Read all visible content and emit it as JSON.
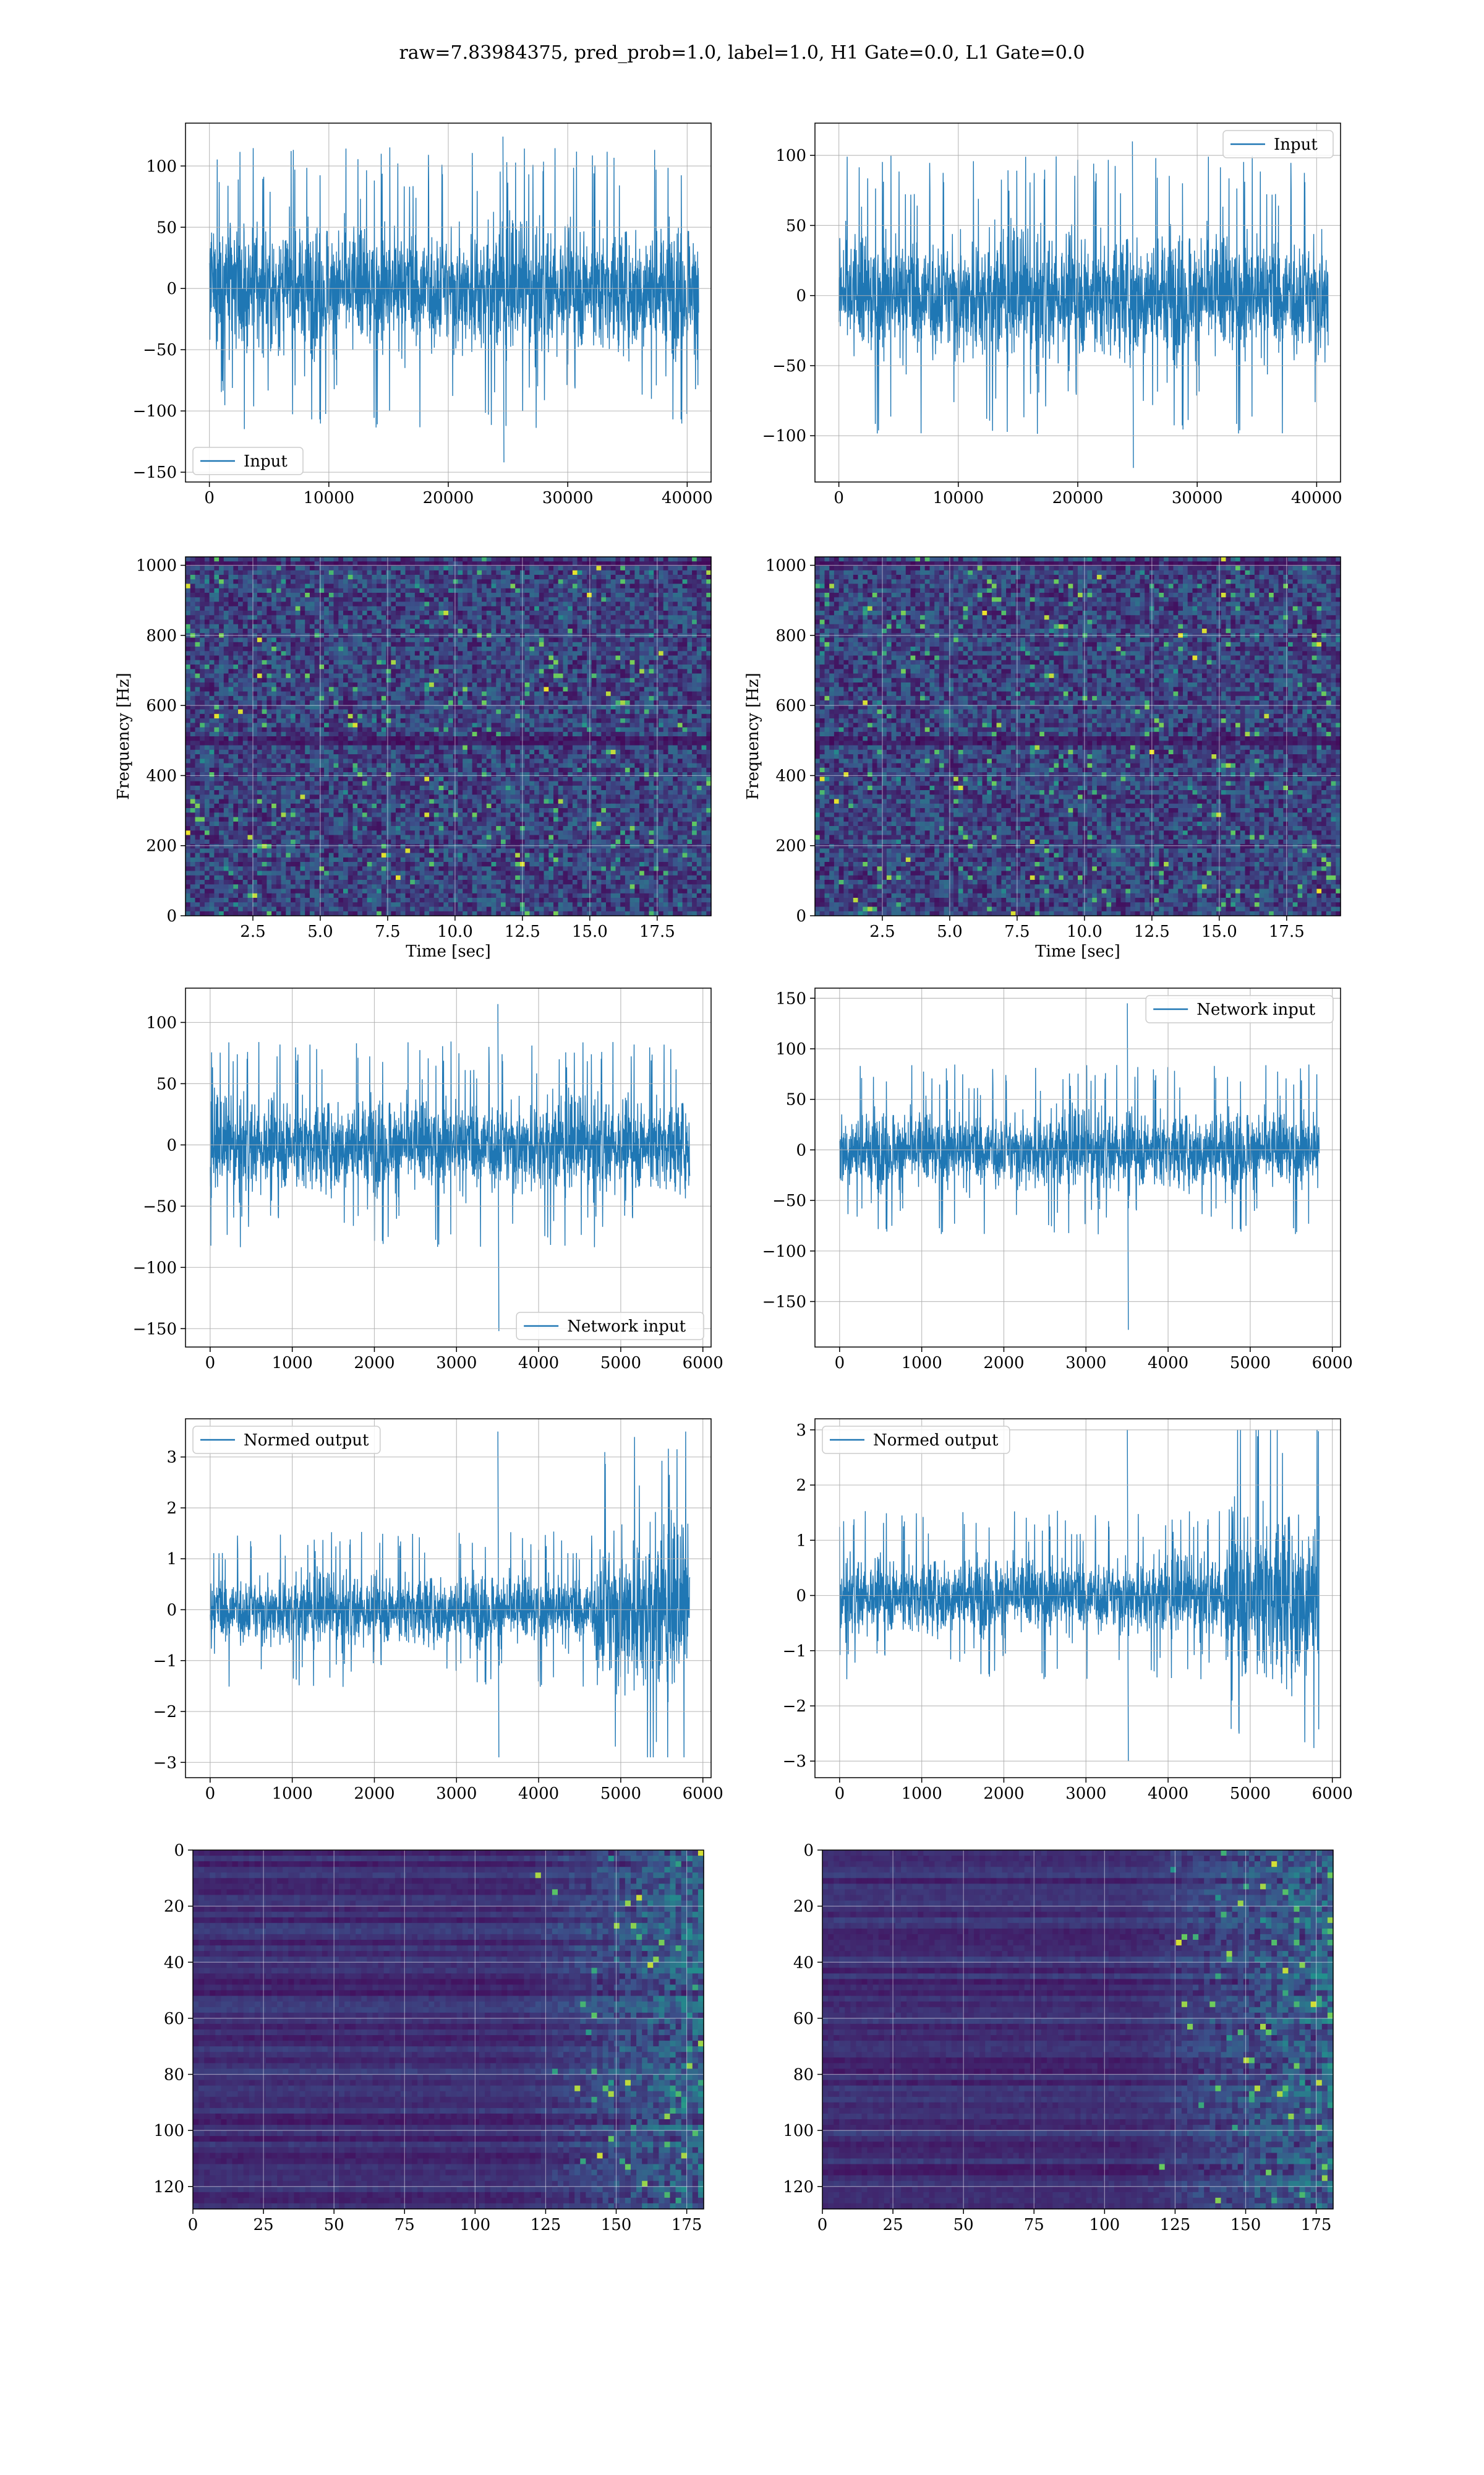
{
  "figure": {
    "suptitle": "raw=7.83984375, pred_prob=1.0, label=1.0, H1 Gate=0.0, L1 Gate=0.0",
    "line_color": "#1f77b4",
    "grid_color": "#b0b0b0"
  },
  "chart_data": [
    {
      "id": "input-left",
      "type": "line",
      "series": [
        {
          "name": "Input",
          "length": 40960,
          "baseline": 0,
          "amplitude_typical": 75,
          "min": -142,
          "max": 124
        }
      ],
      "x_ticks": [
        0,
        10000,
        20000,
        30000,
        40000
      ],
      "y_ticks": [
        -150,
        -100,
        -50,
        0,
        50,
        100
      ],
      "xlim": [
        -2000,
        42000
      ],
      "ylim": [
        -158,
        135
      ],
      "legend": "lower-left",
      "grid": true
    },
    {
      "id": "input-right",
      "type": "line",
      "series": [
        {
          "name": "Input",
          "length": 40960,
          "baseline": 0,
          "amplitude_typical": 65,
          "min": -123,
          "max": 110
        }
      ],
      "x_ticks": [
        0,
        10000,
        20000,
        30000,
        40000
      ],
      "y_ticks": [
        -100,
        -50,
        0,
        50,
        100
      ],
      "xlim": [
        -2000,
        42000
      ],
      "ylim": [
        -133,
        123
      ],
      "legend": "top-right",
      "grid": true
    },
    {
      "id": "spectrogram-left",
      "type": "heatmap",
      "xlabel": "Time [sec]",
      "ylabel": "Frequency [Hz]",
      "x_ticks": [
        "2.5",
        "5.0",
        "7.5",
        "10.0",
        "12.5",
        "15.0",
        "17.5"
      ],
      "x_tick_values": [
        2.5,
        5.0,
        7.5,
        10.0,
        12.5,
        15.0,
        17.5
      ],
      "y_ticks": [
        0,
        200,
        400,
        600,
        800,
        1000
      ],
      "xlim": [
        0,
        19.5
      ],
      "ylim": [
        0,
        1024
      ],
      "colormap": "viridis",
      "grid": true
    },
    {
      "id": "spectrogram-right",
      "type": "heatmap",
      "xlabel": "Time [sec]",
      "ylabel": "Frequency [Hz]",
      "x_ticks": [
        "2.5",
        "5.0",
        "7.5",
        "10.0",
        "12.5",
        "15.0",
        "17.5"
      ],
      "x_tick_values": [
        2.5,
        5.0,
        7.5,
        10.0,
        12.5,
        15.0,
        17.5
      ],
      "y_ticks": [
        0,
        200,
        400,
        600,
        800,
        1000
      ],
      "xlim": [
        0,
        19.5
      ],
      "ylim": [
        0,
        1024
      ],
      "colormap": "viridis",
      "grid": true
    },
    {
      "id": "network-input-left",
      "type": "line",
      "series": [
        {
          "name": "Network input",
          "length": 5840,
          "baseline": 0,
          "amplitude_typical": 55,
          "min": -152,
          "max": 115
        }
      ],
      "x_ticks": [
        0,
        1000,
        2000,
        3000,
        4000,
        5000,
        6000
      ],
      "y_ticks": [
        -150,
        -100,
        -50,
        0,
        50,
        100
      ],
      "xlim": [
        -300,
        6100
      ],
      "ylim": [
        -165,
        128
      ],
      "legend": "lower-right",
      "grid": true
    },
    {
      "id": "network-input-right",
      "type": "line",
      "series": [
        {
          "name": "Network input",
          "length": 5840,
          "baseline": 0,
          "amplitude_typical": 55,
          "min": -178,
          "max": 145
        }
      ],
      "x_ticks": [
        0,
        1000,
        2000,
        3000,
        4000,
        5000,
        6000
      ],
      "y_ticks": [
        -150,
        -100,
        -50,
        0,
        50,
        100,
        150
      ],
      "xlim": [
        -300,
        6100
      ],
      "ylim": [
        -195,
        160
      ],
      "legend": "top-right",
      "grid": true
    },
    {
      "id": "normed-output-left",
      "type": "line",
      "series": [
        {
          "name": "Normed output",
          "length": 5840,
          "baseline": 0,
          "amplitude_typical": 1.0,
          "burst_start": 4700,
          "burst_amplitude": 2.3,
          "min": -2.9,
          "max": 3.5
        }
      ],
      "x_ticks": [
        0,
        1000,
        2000,
        3000,
        4000,
        5000,
        6000
      ],
      "y_ticks": [
        -3,
        -2,
        -1,
        0,
        1,
        2,
        3
      ],
      "xlim": [
        -300,
        6100
      ],
      "ylim": [
        -3.3,
        3.75
      ],
      "legend": "top-left",
      "grid": true
    },
    {
      "id": "normed-output-right",
      "type": "line",
      "series": [
        {
          "name": "Normed output",
          "length": 5840,
          "baseline": 0,
          "amplitude_typical": 1.0,
          "burst_start": 4700,
          "burst_amplitude": 2.3,
          "min": -3.0,
          "max": 3.0
        }
      ],
      "x_ticks": [
        0,
        1000,
        2000,
        3000,
        4000,
        5000,
        6000
      ],
      "y_ticks": [
        -3,
        -2,
        -1,
        0,
        1,
        2,
        3
      ],
      "xlim": [
        -300,
        6100
      ],
      "ylim": [
        -3.3,
        3.2
      ],
      "legend": "top-left",
      "grid": true
    },
    {
      "id": "features-left",
      "type": "heatmap",
      "x_ticks": [
        0,
        25,
        50,
        75,
        100,
        125,
        150,
        175
      ],
      "y_ticks": [
        0,
        20,
        40,
        60,
        80,
        100,
        120
      ],
      "xlim": [
        0,
        181
      ],
      "ylim": [
        128,
        0
      ],
      "colormap": "viridis",
      "active_region_start": 115,
      "grid": true
    },
    {
      "id": "features-right",
      "type": "heatmap",
      "x_ticks": [
        0,
        25,
        50,
        75,
        100,
        125,
        150,
        175
      ],
      "y_ticks": [
        0,
        20,
        40,
        60,
        80,
        100,
        120
      ],
      "xlim": [
        0,
        181
      ],
      "ylim": [
        128,
        0
      ],
      "colormap": "viridis",
      "active_region_start": 110,
      "grid": true
    }
  ]
}
